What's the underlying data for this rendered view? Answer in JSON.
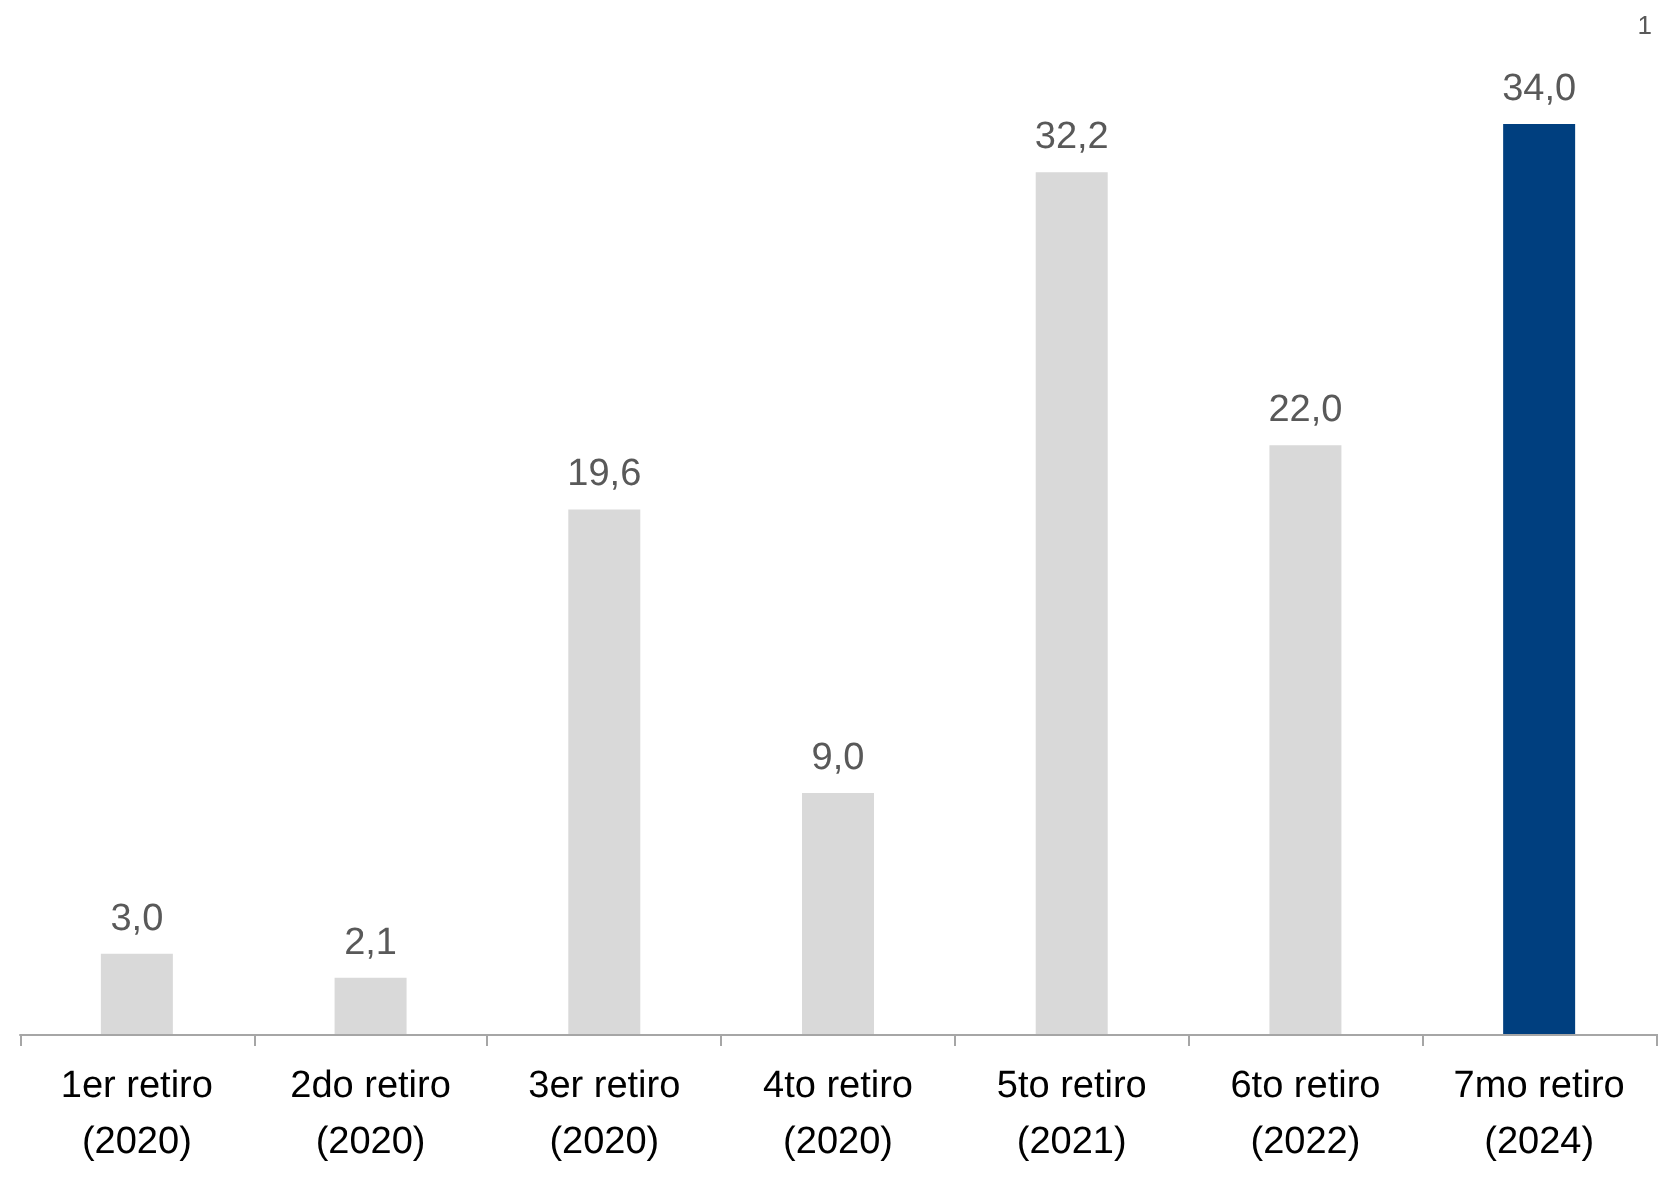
{
  "chart_data": {
    "type": "bar",
    "categories": [
      "1er retiro\n(2020)",
      "2do retiro\n(2020)",
      "3er retiro\n(2020)",
      "4to retiro\n(2020)",
      "5to retiro\n(2021)",
      "6to retiro\n(2022)",
      "7mo retiro\n(2024)"
    ],
    "values": [
      3.0,
      2.1,
      19.6,
      9.0,
      32.2,
      22.0,
      34.0
    ],
    "colors": [
      "#d9d9d9",
      "#d9d9d9",
      "#d9d9d9",
      "#d9d9d9",
      "#d9d9d9",
      "#d9d9d9",
      "#003f7f"
    ],
    "value_labels": [
      "3,0",
      "2,1",
      "19,6",
      "9,0",
      "32,2",
      "22,0",
      "34,0"
    ],
    "annotations": [
      "1"
    ]
  }
}
